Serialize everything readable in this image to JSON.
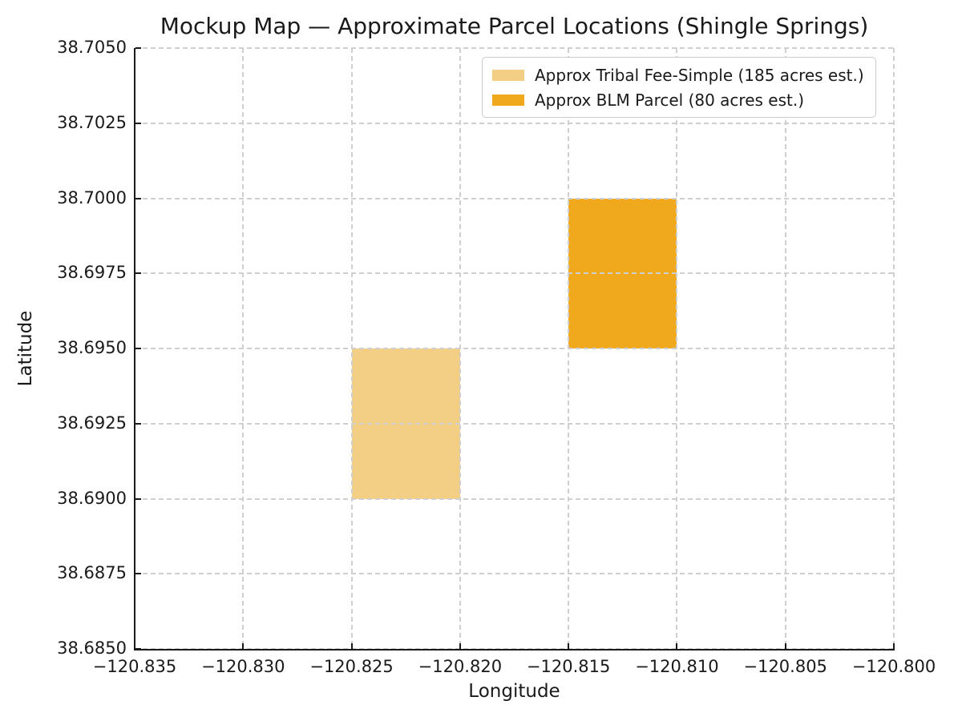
{
  "chart_data": {
    "type": "rect-map",
    "title": "Mockup Map — Approximate Parcel Locations (Shingle Springs)",
    "xlabel": "Longitude",
    "ylabel": "Latitude",
    "xlim": [
      -120.835,
      -120.8
    ],
    "ylim": [
      38.685,
      38.705
    ],
    "x_ticks": [
      {
        "value": -120.835,
        "label": "−120.835"
      },
      {
        "value": -120.83,
        "label": "−120.830"
      },
      {
        "value": -120.825,
        "label": "−120.825"
      },
      {
        "value": -120.82,
        "label": "−120.820"
      },
      {
        "value": -120.815,
        "label": "−120.815"
      },
      {
        "value": -120.81,
        "label": "−120.810"
      },
      {
        "value": -120.805,
        "label": "−120.805"
      },
      {
        "value": -120.8,
        "label": "−120.800"
      }
    ],
    "y_ticks": [
      {
        "value": 38.705,
        "label": "38.7050"
      },
      {
        "value": 38.7025,
        "label": "38.7025"
      },
      {
        "value": 38.7,
        "label": "38.7000"
      },
      {
        "value": 38.6975,
        "label": "38.6975"
      },
      {
        "value": 38.695,
        "label": "38.6950"
      },
      {
        "value": 38.6925,
        "label": "38.6925"
      },
      {
        "value": 38.69,
        "label": "38.6900"
      },
      {
        "value": 38.6875,
        "label": "38.6875"
      },
      {
        "value": 38.685,
        "label": "38.6850"
      }
    ],
    "grid": {
      "on": true,
      "style": "dashed",
      "color": "#cfcfcf",
      "above_patches": true
    },
    "parcels": [
      {
        "name": "tribal-fee-simple",
        "label": "Approx Tribal Fee-Simple (185 acres est.)",
        "color": "#F3CF86",
        "lon": [
          -120.825,
          -120.82
        ],
        "lat": [
          38.69,
          38.695
        ]
      },
      {
        "name": "blm-parcel",
        "label": "Approx BLM Parcel (80 acres est.)",
        "color": "#F0A81C",
        "lon": [
          -120.815,
          -120.81
        ],
        "lat": [
          38.695,
          38.7
        ]
      }
    ],
    "legend": {
      "position": "upper-right",
      "items": [
        {
          "label": "Approx Tribal Fee-Simple (185 acres est.)",
          "color": "#F3CF86"
        },
        {
          "label": "Approx BLM Parcel (80 acres est.)",
          "color": "#F0A81C"
        }
      ]
    },
    "colors": {
      "spine": "#1a1a1a",
      "text": "#1a1a1a",
      "grid": "#cfcfcf",
      "background": "#ffffff"
    }
  }
}
